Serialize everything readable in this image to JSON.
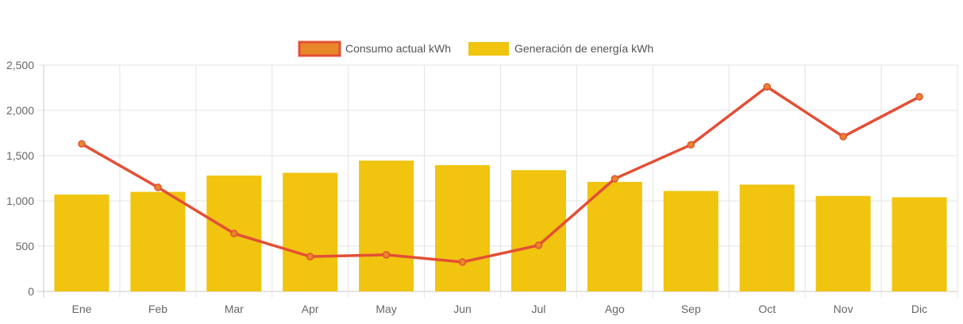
{
  "colors": {
    "line": "#e34f35",
    "line_fill": "#e8862a",
    "bar": "#f0c40f",
    "grid": "#e3e3e3",
    "axis": "#c8c8c8",
    "text": "#666666"
  },
  "legend": {
    "items": [
      {
        "label": "Consumo actual kWh",
        "swatch": "line"
      },
      {
        "label": "Generación de energía kWh",
        "swatch": "bar"
      }
    ],
    "placement": "top-center"
  },
  "chart_data": {
    "type": "bar",
    "categories": [
      "Ene",
      "Feb",
      "Mar",
      "Apr",
      "May",
      "Jun",
      "Jul",
      "Ago",
      "Sep",
      "Oct",
      "Nov",
      "Dic"
    ],
    "series": [
      {
        "name": "Consumo actual kWh",
        "type": "line",
        "values": [
          1630,
          1150,
          640,
          385,
          405,
          325,
          510,
          1245,
          1620,
          2260,
          1710,
          2150
        ]
      },
      {
        "name": "Generación de energía kWh",
        "type": "bar",
        "values": [
          1070,
          1100,
          1280,
          1310,
          1445,
          1395,
          1340,
          1210,
          1110,
          1180,
          1055,
          1040
        ]
      }
    ],
    "yticks": [
      "0",
      "500",
      "1,000",
      "1,500",
      "2,000",
      "2,500"
    ],
    "ylim": [
      0,
      2500
    ],
    "grid": true
  }
}
